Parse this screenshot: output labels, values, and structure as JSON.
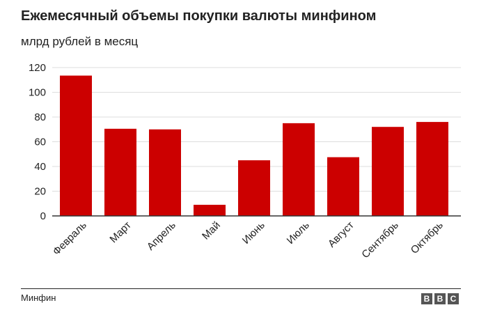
{
  "chart_data": {
    "type": "bar",
    "title": "Ежемесячный объемы покупки валюты минфином",
    "subtitle": "млрд рублей в месяц",
    "categories": [
      "Февраль",
      "Март",
      "Апрель",
      "Май",
      "Июнь",
      "Июль",
      "Август",
      "Сентябрь",
      "Октябрь"
    ],
    "values": [
      113.5,
      70.5,
      70,
      9,
      45,
      75,
      47.5,
      72,
      76
    ],
    "ylim": [
      0,
      120
    ],
    "yticks": [
      0,
      20,
      40,
      60,
      80,
      100,
      120
    ],
    "xlabel": "",
    "ylabel": "",
    "grid": true,
    "bar_color": "#cc0000",
    "grid_color": "#dddddd"
  },
  "footer": {
    "source": "Минфин",
    "logo_letters": [
      "B",
      "B",
      "C"
    ]
  }
}
